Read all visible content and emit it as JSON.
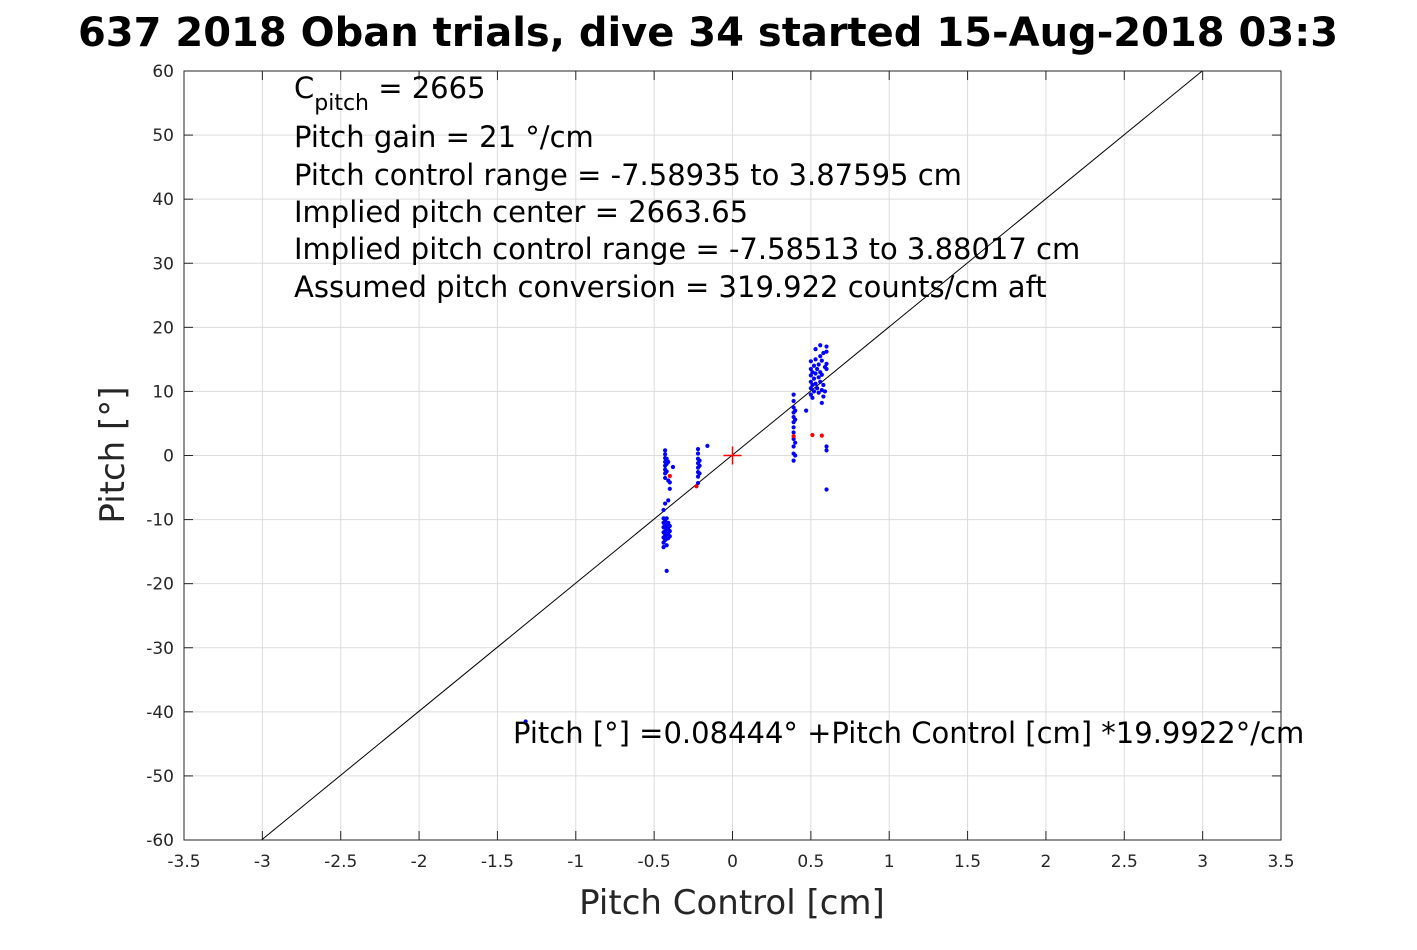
{
  "chart_data": {
    "type": "scatter",
    "title": "637 2018 Oban trials, dive 34 started 15-Aug-2018 03:3",
    "xlabel": "Pitch Control [cm]",
    "ylabel": "Pitch [°]",
    "xlim": [
      -3.5,
      3.5
    ],
    "ylim": [
      -60,
      60
    ],
    "xticks": [
      -3.5,
      -3,
      -2.5,
      -2,
      -1.5,
      -1,
      -0.5,
      0,
      0.5,
      1,
      1.5,
      2,
      2.5,
      3,
      3.5
    ],
    "yticks": [
      -60,
      -50,
      -40,
      -30,
      -20,
      -10,
      0,
      10,
      20,
      30,
      40,
      50,
      60
    ],
    "xtick_labels": [
      "-3.5",
      "-3",
      "-2.5",
      "-2",
      "-1.5",
      "-1",
      "-0.5",
      "0",
      "0.5",
      "1",
      "1.5",
      "2",
      "2.5",
      "3",
      "3.5"
    ],
    "ytick_labels": [
      "-60",
      "-50",
      "-40",
      "-30",
      "-20",
      "-10",
      "0",
      "10",
      "20",
      "30",
      "40",
      "50",
      "60"
    ],
    "grid": true,
    "colors": {
      "good": "#0000ff",
      "bad": "#ff0000",
      "fit": "#000000",
      "center": "#ff0000"
    },
    "annotations": {
      "c_pitch_main": "C",
      "c_pitch_sub": "pitch",
      "c_pitch_value": " = 2665",
      "lines": [
        "Pitch gain = 21 °/cm",
        "Pitch control range = -7.58935 to 3.87595 cm",
        "Implied pitch center = 2663.65",
        "Implied pitch control range = -7.58513 to 3.88017 cm",
        "Assumed pitch conversion = 319.922 counts/cm aft"
      ],
      "equation": "Pitch [°] =0.08444° +Pitch Control [cm] *19.9922°/cm"
    },
    "fit_line": {
      "intercept": 0.08444,
      "slope": 19.9922
    },
    "center_marker": {
      "x": 0,
      "y": 0
    },
    "series": [
      {
        "marker": "dot",
        "color": "#0000ff",
        "points": [
          [
            -0.43,
            0.8
          ],
          [
            -0.43,
            0.2
          ],
          [
            -0.43,
            -0.4
          ],
          [
            -0.43,
            -1.0
          ],
          [
            -0.43,
            -1.6
          ],
          [
            -0.43,
            -2.2
          ],
          [
            -0.43,
            -2.8
          ],
          [
            -0.43,
            -3.5
          ],
          [
            -0.42,
            -0.5
          ],
          [
            -0.42,
            -1.3
          ],
          [
            -0.42,
            -2.5
          ],
          [
            -0.41,
            -3.9
          ],
          [
            -0.41,
            -1.0
          ],
          [
            -0.4,
            -4.2
          ],
          [
            -0.4,
            -5.2
          ],
          [
            -0.38,
            -1.8
          ],
          [
            -0.44,
            -8.5
          ],
          [
            -0.44,
            -9.8
          ],
          [
            -0.44,
            -10.5
          ],
          [
            -0.44,
            -11.2
          ],
          [
            -0.44,
            -12.0
          ],
          [
            -0.44,
            -12.8
          ],
          [
            -0.44,
            -13.6
          ],
          [
            -0.44,
            -14.3
          ],
          [
            -0.43,
            -10.2
          ],
          [
            -0.43,
            -11.0
          ],
          [
            -0.43,
            -11.8
          ],
          [
            -0.43,
            -12.5
          ],
          [
            -0.43,
            -13.2
          ],
          [
            -0.42,
            -9.8
          ],
          [
            -0.42,
            -10.8
          ],
          [
            -0.42,
            -11.5
          ],
          [
            -0.42,
            -12.3
          ],
          [
            -0.42,
            -13.0
          ],
          [
            -0.41,
            -10.5
          ],
          [
            -0.41,
            -11.3
          ],
          [
            -0.41,
            -12.1
          ],
          [
            -0.41,
            -12.9
          ],
          [
            -0.4,
            -11.0
          ],
          [
            -0.4,
            -11.8
          ],
          [
            -0.4,
            -12.6
          ],
          [
            -0.42,
            -14.0
          ],
          [
            -0.43,
            -7.5
          ],
          [
            -0.41,
            -7.0
          ],
          [
            -0.42,
            -18.0
          ],
          [
            -0.22,
            1.0
          ],
          [
            -0.22,
            0.3
          ],
          [
            -0.22,
            -0.5
          ],
          [
            -0.22,
            -1.2
          ],
          [
            -0.22,
            -1.9
          ],
          [
            -0.22,
            -2.6
          ],
          [
            -0.22,
            -3.3
          ],
          [
            -0.21,
            -0.8
          ],
          [
            -0.21,
            -1.6
          ],
          [
            -0.21,
            -2.8
          ],
          [
            -0.22,
            -4.3
          ],
          [
            -0.16,
            1.5
          ],
          [
            0.39,
            9.5
          ],
          [
            0.39,
            8.5
          ],
          [
            0.39,
            7.5
          ],
          [
            0.39,
            6.7
          ],
          [
            0.39,
            6.0
          ],
          [
            0.39,
            5.2
          ],
          [
            0.39,
            4.4
          ],
          [
            0.39,
            3.6
          ],
          [
            0.39,
            2.6
          ],
          [
            0.39,
            1.4
          ],
          [
            0.39,
            0.3
          ],
          [
            0.39,
            -0.8
          ],
          [
            0.4,
            7.0
          ],
          [
            0.4,
            5.6
          ],
          [
            0.4,
            2.0
          ],
          [
            0.4,
            0.0
          ],
          [
            0.47,
            7.0
          ],
          [
            0.5,
            14.7
          ],
          [
            0.5,
            13.5
          ],
          [
            0.5,
            12.5
          ],
          [
            0.5,
            11.5
          ],
          [
            0.5,
            10.5
          ],
          [
            0.5,
            9.5
          ],
          [
            0.51,
            13.0
          ],
          [
            0.51,
            11.0
          ],
          [
            0.51,
            9.0
          ],
          [
            0.52,
            14.0
          ],
          [
            0.52,
            12.0
          ],
          [
            0.52,
            10.0
          ],
          [
            0.53,
            16.6
          ],
          [
            0.53,
            15.0
          ],
          [
            0.53,
            12.8
          ],
          [
            0.53,
            11.2
          ],
          [
            0.54,
            13.5
          ],
          [
            0.54,
            10.5
          ],
          [
            0.55,
            14.2
          ],
          [
            0.55,
            12.2
          ],
          [
            0.55,
            9.8
          ],
          [
            0.56,
            17.2
          ],
          [
            0.56,
            15.5
          ],
          [
            0.56,
            13.0
          ],
          [
            0.56,
            11.5
          ],
          [
            0.57,
            14.8
          ],
          [
            0.57,
            12.6
          ],
          [
            0.57,
            10.2
          ],
          [
            0.57,
            8.2
          ],
          [
            0.58,
            16.0
          ],
          [
            0.58,
            11.0
          ],
          [
            0.58,
            9.2
          ],
          [
            0.59,
            13.8
          ],
          [
            0.59,
            10.0
          ],
          [
            0.6,
            17.0
          ],
          [
            0.6,
            16.2
          ],
          [
            0.6,
            14.3
          ],
          [
            0.6,
            13.5
          ],
          [
            0.6,
            1.4
          ],
          [
            0.6,
            0.8
          ],
          [
            0.6,
            -5.3
          ],
          [
            -1.32,
            -41.5
          ]
        ]
      },
      {
        "marker": "dot",
        "color": "#ff0000",
        "points": [
          [
            -0.4,
            -3.2
          ],
          [
            -0.23,
            -4.8
          ],
          [
            0.51,
            3.2
          ],
          [
            0.57,
            3.1
          ],
          [
            0.39,
            3.0
          ]
        ]
      }
    ]
  }
}
